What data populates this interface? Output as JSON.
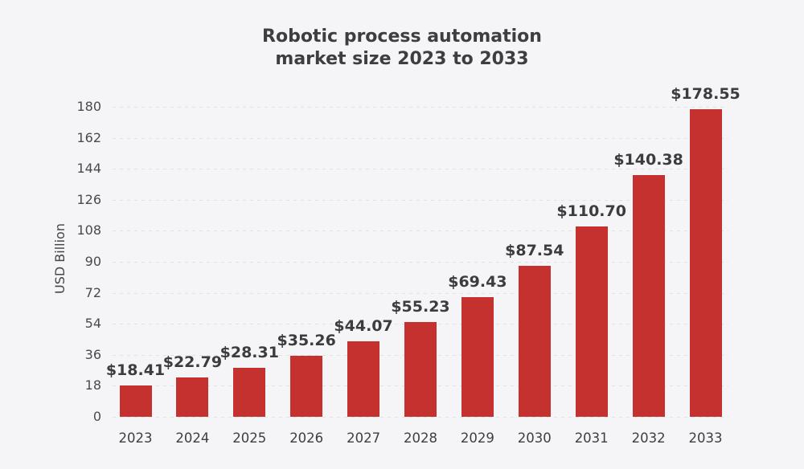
{
  "page": {
    "background_color": "#f5f4f6"
  },
  "title": {
    "line1": "Robotic process automation",
    "line2": "market size 2023 to 2033"
  },
  "chart_data": {
    "type": "bar",
    "title": "Robotic process automation market size 2023 to 2033",
    "xlabel": "",
    "ylabel": "USD Billion",
    "categories": [
      "2023",
      "2024",
      "2025",
      "2026",
      "2027",
      "2028",
      "2029",
      "2030",
      "2031",
      "2032",
      "2033"
    ],
    "values": [
      18.41,
      22.79,
      28.31,
      35.26,
      44.07,
      55.23,
      69.43,
      87.54,
      110.7,
      140.38,
      178.55
    ],
    "bar_labels": [
      "$18.41",
      "$22.79",
      "$28.31",
      "$35.26",
      "$44.07",
      "$55.23",
      "$69.43",
      "$87.54",
      "$110.70",
      "$140.38",
      "$178.55"
    ],
    "yticks": [
      0,
      18,
      36,
      54,
      72,
      90,
      108,
      126,
      144,
      162,
      180
    ],
    "ylim": [
      0,
      180
    ],
    "grid": "horizontal-dashed",
    "legend": "none",
    "bar_color": "#c5312e",
    "grid_color": "#e2e1e4",
    "text_color": "#3e3e40"
  }
}
